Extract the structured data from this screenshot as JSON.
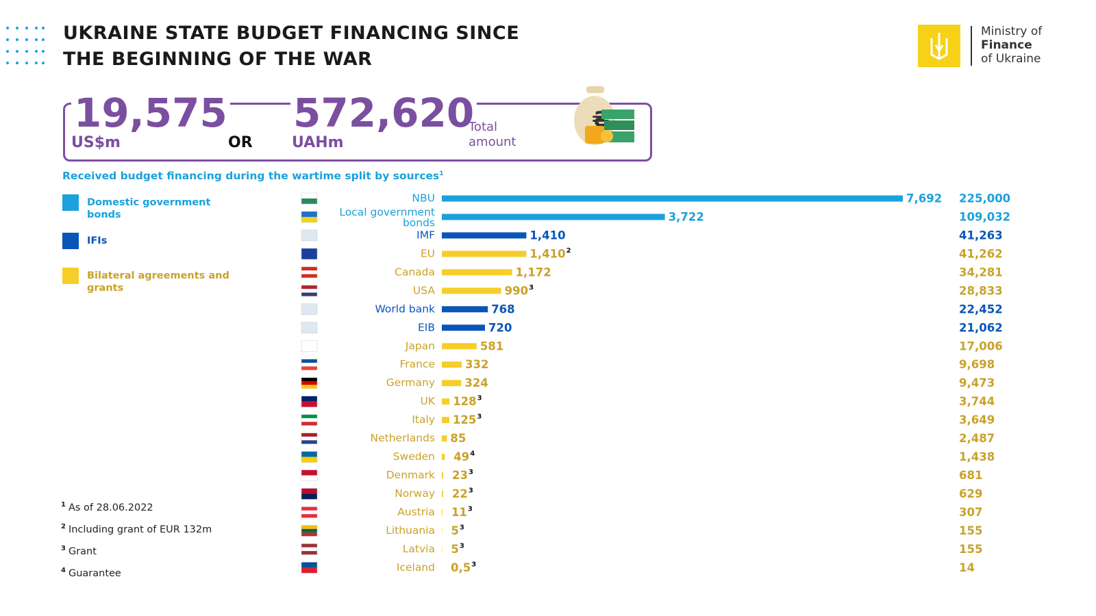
{
  "header": {
    "title_lines": [
      "UKRAINE STATE BUDGET FINANCING SINCE",
      "THE BEGINNING OF THE WAR"
    ],
    "logo_lines": [
      "Ministry of",
      "Finance",
      "of Ukraine"
    ]
  },
  "totals": {
    "usd": "19,575",
    "usd_unit": "US$m",
    "or": "OR",
    "uah": "572,620",
    "uah_unit": "UAHm",
    "caption": [
      "Total",
      "amount"
    ]
  },
  "chart_data": {
    "type": "hbar",
    "title": "Received budget financing during the wartime split by sources",
    "title_note": "1",
    "legend": [
      {
        "name": "Domestic government bonds",
        "color": "#1ba1dc",
        "text_color": "#1ba1dc"
      },
      {
        "name": "IFIs",
        "color": "#0a56b8",
        "text_color": "#0a56b8"
      },
      {
        "name": "Bilateral agreements and grants",
        "color": "#f7cd2a",
        "text_color": "#c9a22a"
      }
    ],
    "categories": [
      "NBU",
      "Local government bonds",
      "IMF",
      "EU",
      "Canada",
      "USA",
      "World bank",
      "EIB",
      "Japan",
      "France",
      "Germany",
      "UK",
      "Italy",
      "Netherlands",
      "Sweden",
      "Denmark",
      "Norway",
      "Austria",
      "Lithuania",
      "Latvia",
      "Iceland"
    ],
    "groups": [
      0,
      0,
      1,
      2,
      2,
      2,
      1,
      1,
      2,
      2,
      2,
      2,
      2,
      2,
      2,
      2,
      2,
      2,
      2,
      2,
      2
    ],
    "values": [
      7692,
      3722,
      1410,
      1410,
      1172,
      990,
      768,
      720,
      581,
      332,
      324,
      128,
      125,
      85,
      49,
      23,
      22,
      11,
      5,
      5,
      0.5
    ],
    "value_labels": [
      "7,692",
      "3,722",
      "1,410",
      "1,410",
      "1,172",
      "990",
      "768",
      "720",
      "581",
      "332",
      "324",
      "128",
      "125",
      "85",
      "49",
      "23",
      "22",
      "11",
      "5",
      "5",
      "0,5"
    ],
    "value_notes": [
      null,
      null,
      null,
      "2",
      null,
      "3",
      null,
      null,
      null,
      null,
      null,
      "3",
      "3",
      null,
      "4",
      "3",
      "3",
      "3",
      "3",
      "3",
      "3"
    ],
    "uah_values": [
      "225,000",
      "109,032",
      "41,263",
      "41,262",
      "34,281",
      "28,833",
      "22,452",
      "21,062",
      "17,006",
      "9,698",
      "9,473",
      "3,744",
      "3,649",
      "2,487",
      "1,438",
      "681",
      "629",
      "307",
      "155",
      "155",
      "14"
    ]
  },
  "footnotes": [
    {
      "mark": "1",
      "text": "As of 28.06.2022"
    },
    {
      "mark": "2",
      "text": "Including grant of EUR 132m"
    },
    {
      "mark": "3",
      "text": "Grant"
    },
    {
      "mark": "4",
      "text": "Guarantee"
    }
  ]
}
